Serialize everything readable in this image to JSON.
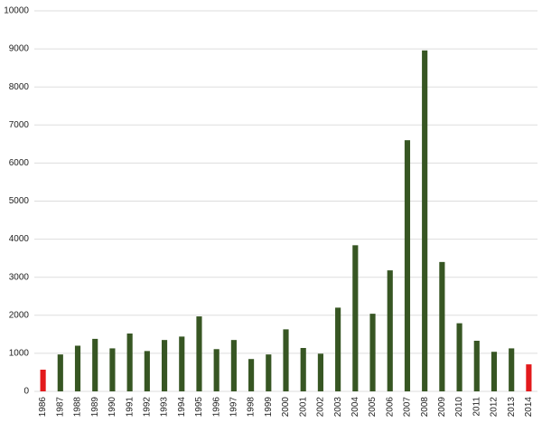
{
  "chart_data": {
    "type": "bar",
    "categories": [
      "1986",
      "1987",
      "1988",
      "1989",
      "1990",
      "1991",
      "1992",
      "1993",
      "1994",
      "1995",
      "1996",
      "1997",
      "1998",
      "1999",
      "2000",
      "2001",
      "2002",
      "2003",
      "2004",
      "2005",
      "2006",
      "2007",
      "2008",
      "2009",
      "2010",
      "2011",
      "2012",
      "2013",
      "2014"
    ],
    "values": [
      570,
      970,
      1200,
      1380,
      1130,
      1520,
      1060,
      1350,
      1440,
      1970,
      1110,
      1350,
      850,
      970,
      1630,
      1140,
      990,
      2200,
      3840,
      2040,
      3180,
      6600,
      8960,
      3400,
      1790,
      1330,
      1040,
      1130,
      710
    ],
    "colors": [
      "#e31a1c",
      "#375623",
      "#375623",
      "#375623",
      "#375623",
      "#375623",
      "#375623",
      "#375623",
      "#375623",
      "#375623",
      "#375623",
      "#375623",
      "#375623",
      "#375623",
      "#375623",
      "#375623",
      "#375623",
      "#375623",
      "#375623",
      "#375623",
      "#375623",
      "#375623",
      "#375623",
      "#375623",
      "#375623",
      "#375623",
      "#375623",
      "#375623",
      "#e31a1c"
    ],
    "ylim": [
      0,
      10000
    ],
    "yticks": [
      0,
      1000,
      2000,
      3000,
      4000,
      5000,
      6000,
      7000,
      8000,
      9000,
      10000
    ],
    "grid": true
  }
}
